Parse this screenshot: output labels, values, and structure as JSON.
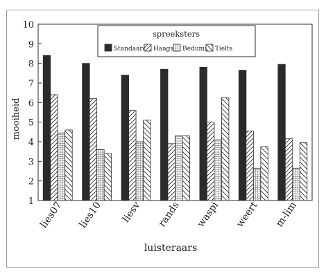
{
  "chart_data": {
    "type": "bar",
    "title": "",
    "xlabel": "luisteraars",
    "ylabel": "mooiheid",
    "ylim": [
      1,
      10
    ],
    "yticks": [
      1,
      2,
      3,
      4,
      5,
      6,
      7,
      8,
      9,
      10
    ],
    "grid": false,
    "legend_title": "spreeksters",
    "legend_position": "top-center",
    "categories": [
      "lies07",
      "lies10",
      "liesv",
      "rands",
      "waspi",
      "weert",
      "m-lim"
    ],
    "series": [
      {
        "name": "Standaard",
        "pattern": "solid",
        "values": [
          8.4,
          8.0,
          7.4,
          7.7,
          7.8,
          7.65,
          7.95
        ]
      },
      {
        "name": "Haags",
        "pattern": "diagonal",
        "values": [
          6.4,
          6.2,
          5.6,
          3.9,
          5.0,
          4.55,
          4.15
        ]
      },
      {
        "name": "Bedums",
        "pattern": "grid",
        "values": [
          4.45,
          3.6,
          4.0,
          4.3,
          4.1,
          2.65,
          2.65
        ]
      },
      {
        "name": "Tielts",
        "pattern": "backdiagonal",
        "values": [
          4.6,
          3.4,
          5.1,
          4.3,
          6.25,
          3.75,
          3.95
        ]
      }
    ],
    "colors": {
      "solid": "#2b2b2b",
      "stroke": "#2b2b2b"
    }
  }
}
